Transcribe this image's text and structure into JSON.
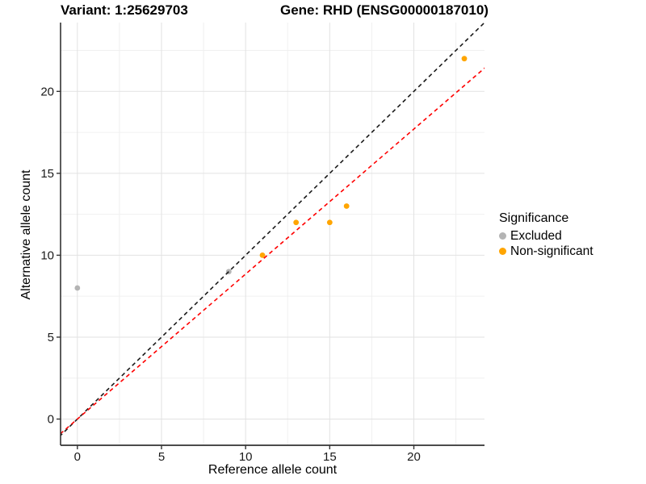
{
  "title": {
    "variant": "Variant: 1:25629703",
    "gene": "Gene: RHD (ENSG00000187010)"
  },
  "axes": {
    "x": {
      "label": "Reference allele count"
    },
    "y": {
      "label": "Alternative allele count"
    }
  },
  "legend": {
    "title": "Significance",
    "items": [
      {
        "label": "Excluded",
        "color": "#b4b4b4"
      },
      {
        "label": "Non-significant",
        "color": "#ffa500"
      }
    ]
  },
  "colors": {
    "background": "#ffffff",
    "grid_major": "#e2e2e2",
    "grid_minor": "#f0f0f0",
    "axis_line": "#333333",
    "identity_line": "#1a1a1a",
    "fit_line": "#ff0000",
    "excluded_point": "#b4b4b4",
    "non_significant_point": "#ffa500"
  },
  "chart_data": {
    "type": "scatter",
    "title": "Variant: 1:25629703  |  Gene: RHD (ENSG00000187010)",
    "xlabel": "Reference allele count",
    "ylabel": "Alternative allele count",
    "xlim": [
      -1.0,
      24.2
    ],
    "ylim": [
      -1.6,
      24.2
    ],
    "xticks": [
      0,
      5,
      10,
      15,
      20
    ],
    "yticks": [
      0,
      5,
      10,
      15,
      20
    ],
    "xticks_minor": [
      2.5,
      7.5,
      12.5,
      17.5,
      22.5
    ],
    "yticks_minor": [
      2.5,
      7.5,
      12.5,
      17.5,
      22.5
    ],
    "grid": true,
    "legend_position": "right",
    "series": [
      {
        "name": "Excluded",
        "color": "#b4b4b4",
        "points": [
          [
            0,
            8
          ],
          [
            9,
            9
          ]
        ]
      },
      {
        "name": "Non-significant",
        "color": "#ffa500",
        "points": [
          [
            11,
            10
          ],
          [
            13,
            12
          ],
          [
            15,
            12
          ],
          [
            16,
            13
          ],
          [
            23,
            22
          ]
        ]
      }
    ],
    "lines": [
      {
        "name": "identity",
        "color": "#1a1a1a",
        "style": "dashed",
        "slope": 1.0,
        "intercept": 0
      },
      {
        "name": "expected-ratio",
        "color": "#ff0000",
        "style": "dashed",
        "slope": 0.885,
        "intercept": 0
      }
    ]
  }
}
